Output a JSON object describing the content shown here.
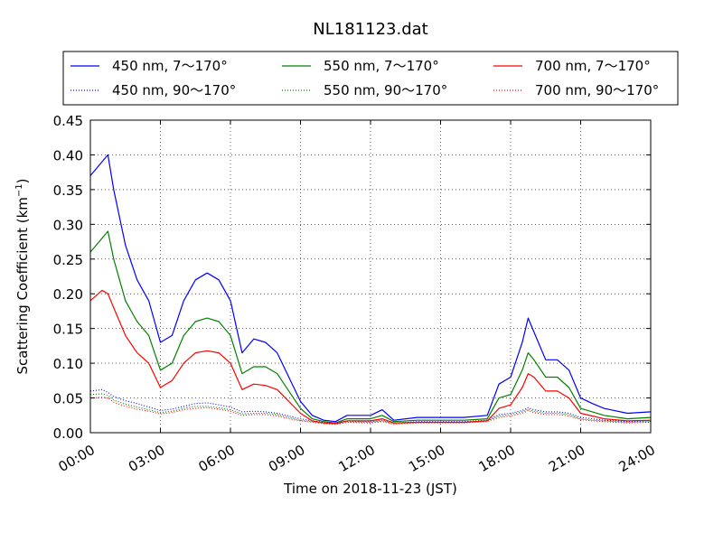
{
  "chart_data": {
    "type": "line",
    "title": "NL181123.dat",
    "xlabel": "Time on 2018-11-23 (JST)",
    "ylabel": "Scattering Coefficient (km",
    "ylabel_sup": "−1",
    "ylabel_close": ")",
    "xlim": [
      "00:00",
      "24:00"
    ],
    "ylim": [
      0,
      0.45
    ],
    "grid": true,
    "legend_placement": "top",
    "x_ticks": [
      "00:00",
      "03:00",
      "06:00",
      "09:00",
      "12:00",
      "15:00",
      "18:00",
      "21:00",
      "24:00"
    ],
    "y_ticks": [
      "0.00",
      "0.05",
      "0.10",
      "0.15",
      "0.20",
      "0.25",
      "0.30",
      "0.35",
      "0.40",
      "0.45"
    ],
    "x": [
      "00:00",
      "00:30",
      "00:45",
      "01:00",
      "01:30",
      "02:00",
      "02:30",
      "03:00",
      "03:30",
      "04:00",
      "04:30",
      "05:00",
      "05:30",
      "06:00",
      "06:30",
      "07:00",
      "07:30",
      "08:00",
      "08:30",
      "09:00",
      "09:30",
      "10:00",
      "10:30",
      "11:00",
      "12:00",
      "12:30",
      "13:00",
      "14:00",
      "15:00",
      "16:00",
      "17:00",
      "17:30",
      "18:00",
      "18:30",
      "18:45",
      "19:00",
      "19:30",
      "20:00",
      "20:30",
      "21:00",
      "21:30",
      "22:00",
      "23:00",
      "24:00"
    ],
    "series": [
      {
        "name": "450 nm, 7～170°",
        "color": "#0000ff",
        "style": "solid",
        "values": [
          0.37,
          0.39,
          0.4,
          0.35,
          0.27,
          0.22,
          0.19,
          0.13,
          0.14,
          0.19,
          0.22,
          0.23,
          0.22,
          0.19,
          0.115,
          0.135,
          0.13,
          0.115,
          0.08,
          0.045,
          0.025,
          0.018,
          0.016,
          0.025,
          0.025,
          0.033,
          0.018,
          0.022,
          0.022,
          0.022,
          0.025,
          0.07,
          0.08,
          0.13,
          0.165,
          0.145,
          0.105,
          0.105,
          0.09,
          0.05,
          0.042,
          0.035,
          0.028,
          0.03
        ]
      },
      {
        "name": "450 nm, 90～170°",
        "color": "#0000ff",
        "style": "dotted",
        "values": [
          0.06,
          0.062,
          0.058,
          0.052,
          0.046,
          0.042,
          0.037,
          0.032,
          0.034,
          0.038,
          0.042,
          0.043,
          0.04,
          0.037,
          0.03,
          0.031,
          0.03,
          0.028,
          0.024,
          0.02,
          0.017,
          0.015,
          0.014,
          0.017,
          0.016,
          0.018,
          0.014,
          0.016,
          0.016,
          0.016,
          0.018,
          0.026,
          0.028,
          0.032,
          0.036,
          0.033,
          0.03,
          0.03,
          0.028,
          0.022,
          0.02,
          0.018,
          0.016,
          0.017
        ]
      },
      {
        "name": "550 nm, 7～170°",
        "color": "#008000",
        "style": "solid",
        "values": [
          0.26,
          0.28,
          0.29,
          0.25,
          0.19,
          0.16,
          0.14,
          0.09,
          0.1,
          0.14,
          0.16,
          0.165,
          0.16,
          0.14,
          0.085,
          0.095,
          0.095,
          0.085,
          0.06,
          0.035,
          0.02,
          0.016,
          0.014,
          0.02,
          0.02,
          0.025,
          0.016,
          0.018,
          0.018,
          0.018,
          0.02,
          0.05,
          0.055,
          0.09,
          0.115,
          0.105,
          0.08,
          0.08,
          0.065,
          0.035,
          0.03,
          0.025,
          0.02,
          0.022
        ]
      },
      {
        "name": "550 nm, 90～170°",
        "color": "#008000",
        "style": "dotted",
        "values": [
          0.055,
          0.056,
          0.054,
          0.047,
          0.041,
          0.037,
          0.033,
          0.029,
          0.031,
          0.035,
          0.038,
          0.038,
          0.036,
          0.033,
          0.027,
          0.028,
          0.028,
          0.026,
          0.022,
          0.018,
          0.016,
          0.014,
          0.013,
          0.016,
          0.015,
          0.017,
          0.013,
          0.015,
          0.015,
          0.015,
          0.017,
          0.024,
          0.026,
          0.03,
          0.034,
          0.031,
          0.028,
          0.028,
          0.026,
          0.02,
          0.018,
          0.017,
          0.015,
          0.016
        ]
      },
      {
        "name": "700 nm, 7～170°",
        "color": "#ff0000",
        "style": "solid",
        "values": [
          0.19,
          0.205,
          0.2,
          0.18,
          0.14,
          0.115,
          0.1,
          0.065,
          0.075,
          0.1,
          0.115,
          0.118,
          0.115,
          0.1,
          0.062,
          0.07,
          0.068,
          0.062,
          0.045,
          0.028,
          0.017,
          0.014,
          0.013,
          0.017,
          0.017,
          0.02,
          0.014,
          0.015,
          0.015,
          0.015,
          0.017,
          0.035,
          0.04,
          0.065,
          0.085,
          0.08,
          0.06,
          0.06,
          0.05,
          0.028,
          0.024,
          0.02,
          0.017,
          0.018
        ]
      },
      {
        "name": "700 nm, 90～170°",
        "color": "#ff0000",
        "style": "dotted",
        "values": [
          0.05,
          0.051,
          0.05,
          0.044,
          0.038,
          0.034,
          0.031,
          0.027,
          0.029,
          0.033,
          0.035,
          0.036,
          0.034,
          0.031,
          0.025,
          0.026,
          0.026,
          0.024,
          0.02,
          0.017,
          0.015,
          0.013,
          0.012,
          0.015,
          0.014,
          0.016,
          0.012,
          0.014,
          0.014,
          0.014,
          0.016,
          0.022,
          0.024,
          0.028,
          0.032,
          0.029,
          0.026,
          0.026,
          0.024,
          0.019,
          0.017,
          0.016,
          0.014,
          0.015
        ]
      }
    ]
  }
}
